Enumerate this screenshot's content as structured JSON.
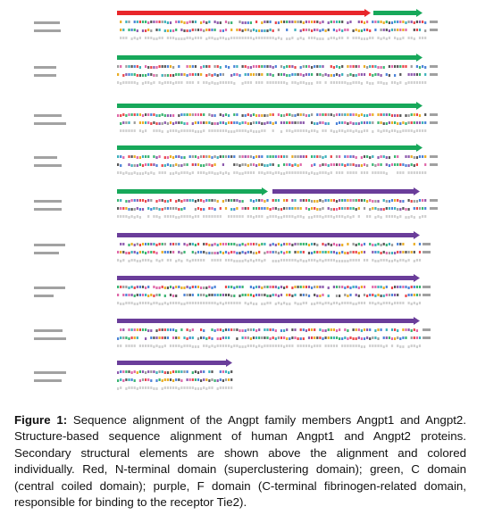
{
  "figure": {
    "domain_colors": {
      "n_terminal": "#e8262a",
      "c_domain": "#17a85a",
      "f_domain": "#6a3d9a"
    },
    "residue_colors": [
      "#e8262a",
      "#17a85a",
      "#2e6fd1",
      "#e6a000",
      "#7a3fa0",
      "#1ba3b0",
      "#d94e9a",
      "#8c8c8c",
      "#3a3a3a"
    ],
    "blocks": [
      {
        "arrows": [
          {
            "domain": "n_terminal"
          },
          {
            "domain": "c_domain"
          }
        ]
      },
      {
        "arrows": [
          {
            "domain": "c_domain"
          }
        ]
      },
      {
        "arrows": [
          {
            "domain": "c_domain"
          }
        ]
      },
      {
        "arrows": [
          {
            "domain": "c_domain"
          }
        ]
      },
      {
        "arrows": [
          {
            "domain": "c_domain"
          },
          {
            "domain": "f_domain"
          }
        ]
      },
      {
        "arrows": [
          {
            "domain": "f_domain"
          }
        ]
      },
      {
        "arrows": [
          {
            "domain": "f_domain"
          }
        ]
      },
      {
        "arrows": [
          {
            "domain": "f_domain"
          }
        ]
      },
      {
        "arrows": [
          {
            "domain": "f_domain"
          }
        ]
      }
    ]
  },
  "caption": {
    "label": "Figure 1:",
    "text": " Sequence alignment of the Angpt family members Angpt1 and Angpt2. Structure-based sequence alignment of human Angpt1 and Angpt2 proteins. Secondary structural elements are shown above the alignment and colored individually. Red, N-terminal domain (superclustering domain); green, C domain (central coiled domain); purple, F domain (C-terminal fibrinogen-related domain, responsible for binding to the receptor Tie2)."
  }
}
